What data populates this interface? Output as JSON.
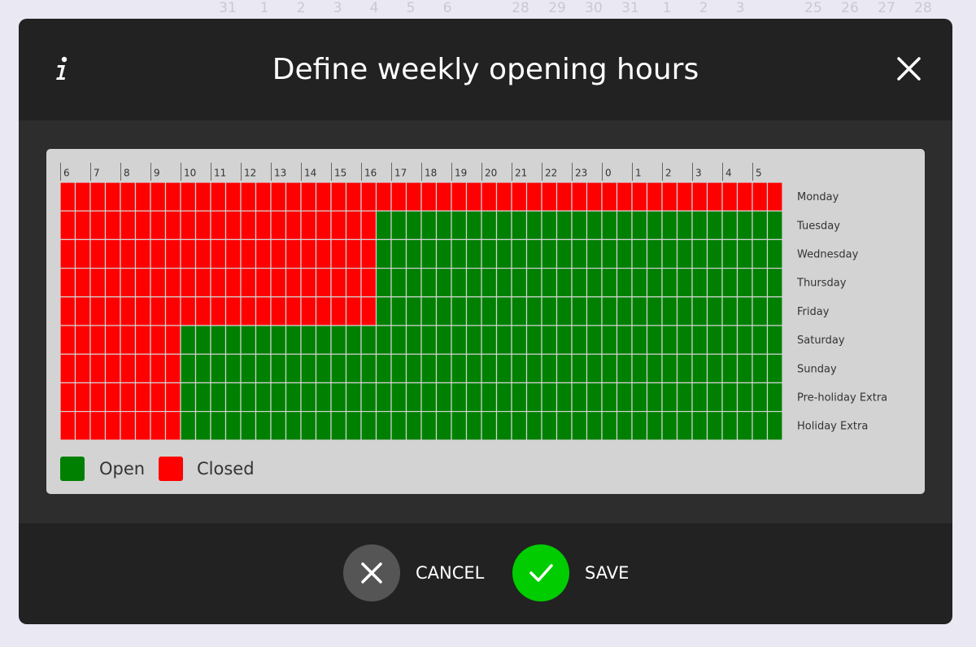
{
  "background": {
    "calendar_numbers": [
      "31",
      "1",
      "2",
      "3",
      "4",
      "5",
      "6",
      "28",
      "29",
      "30",
      "31",
      "1",
      "2",
      "3",
      "25",
      "26",
      "27",
      "28"
    ]
  },
  "dialog": {
    "title": "Define weekly opening hours",
    "hours": [
      "6",
      "7",
      "8",
      "9",
      "10",
      "11",
      "12",
      "13",
      "14",
      "15",
      "16",
      "17",
      "18",
      "19",
      "20",
      "21",
      "22",
      "23",
      "0",
      "1",
      "2",
      "3",
      "4",
      "5"
    ],
    "days": [
      "Monday",
      "Tuesday",
      "Wednesday",
      "Thursday",
      "Friday",
      "Saturday",
      "Sunday",
      "Pre-holiday Extra",
      "Holiday Extra"
    ],
    "legend": {
      "open": "Open",
      "closed": "Closed"
    },
    "buttons": {
      "cancel": "CANCEL",
      "save": "SAVE"
    }
  }
}
